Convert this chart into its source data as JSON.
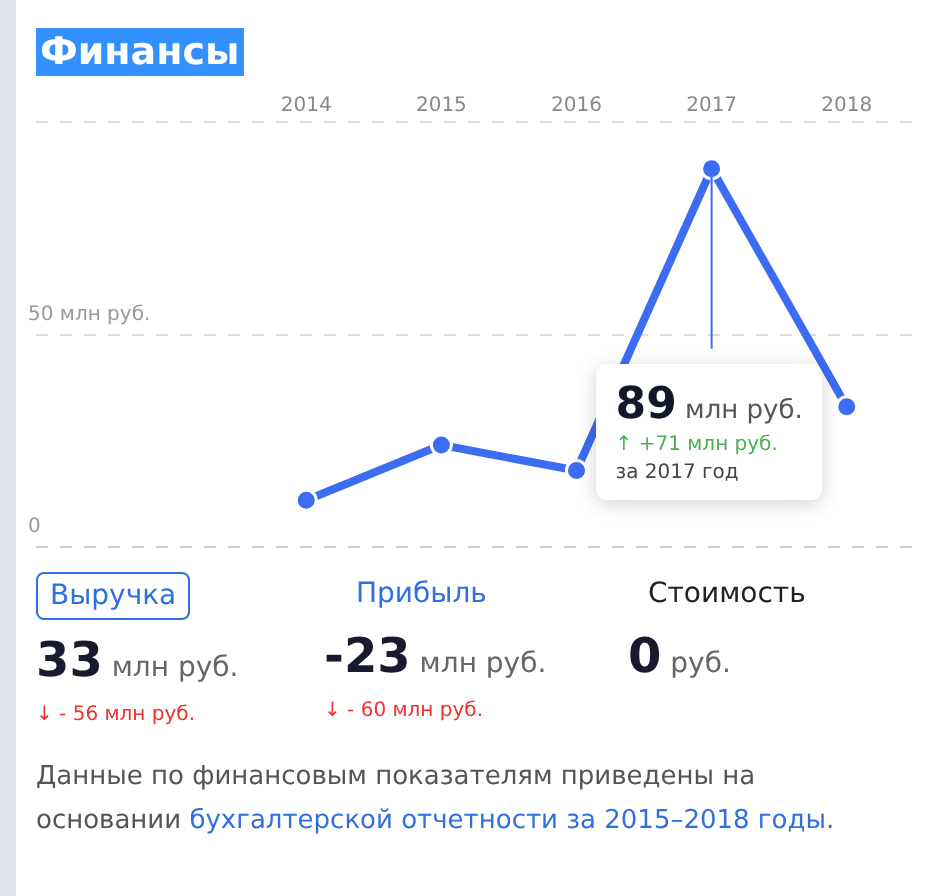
{
  "chart_data": {
    "type": "line",
    "title": "Финансы",
    "categories": [
      "2014",
      "2015",
      "2016",
      "2017",
      "2018"
    ],
    "series": [
      {
        "color": "#3b6cf2",
        "values": [
          11,
          24,
          18,
          89,
          33
        ]
      }
    ],
    "ylim": [
      0,
      100
    ],
    "yticks": [
      0,
      {
        "value": 50,
        "label": "50 млн руб."
      },
      {
        "value": 100,
        "label": null
      }
    ],
    "grid": "y",
    "legend": false,
    "marker": "circle",
    "line_style": "solid",
    "annotations": [
      {
        "text": "89 млн руб.\n↑ +71 млн руб.\nза 2017 год",
        "x": "2017",
        "y": 89
      },
      "Выручка",
      "33 млн руб.",
      "↓ - 56 млн руб.",
      "Прибыль",
      "-23 млн руб.",
      "↓ - 60 млн руб.",
      "Стоимость",
      "0 руб.",
      "Данные по финансовым показателям приведены на основании",
      "бухгалтерской отчетности за 2015–2018 годы."
    ]
  }
}
